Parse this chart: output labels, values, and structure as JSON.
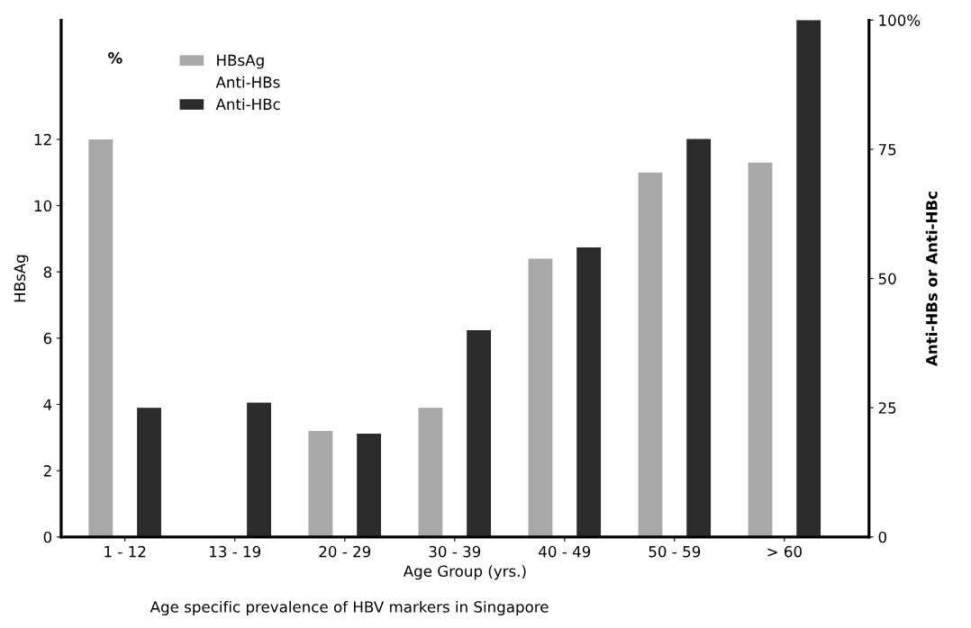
{
  "chart_data": {
    "type": "bar",
    "xlabel": "Age Group (yrs.)",
    "ylabel": "HBsAg",
    "y2label": "Anti-HBs or Anti-HBc",
    "categories": [
      "1 - 12",
      "13 - 19",
      "20 - 29",
      "30 - 39",
      "40 - 49",
      "50 - 59",
      "> 60"
    ],
    "series": [
      {
        "name": "HBsAg",
        "color": "#a8a8a8",
        "values": [
          12.0,
          null,
          3.2,
          3.9,
          8.4,
          11.0,
          11.3
        ]
      },
      {
        "name": "Anti-HBs",
        "axis": "y2",
        "values": [
          null,
          null,
          null,
          null,
          null,
          null,
          null
        ]
      },
      {
        "name": "Anti-HBc",
        "color": "#2b2b2b",
        "axis": "y2",
        "values": [
          25,
          26,
          20,
          40,
          56,
          77,
          100
        ]
      }
    ],
    "ylim": [
      0,
      15.6
    ],
    "yticks": [
      0,
      2,
      4,
      6,
      8,
      10,
      12
    ],
    "y2lim": [
      0,
      100
    ],
    "y2ticks": [
      0,
      25,
      50,
      75,
      {
        "value": 100,
        "label": "100%"
      }
    ],
    "annotations": [
      "%",
      "Age specific prevalence of HBV markers in Singapore"
    ],
    "grid": false,
    "legend": "top left"
  }
}
